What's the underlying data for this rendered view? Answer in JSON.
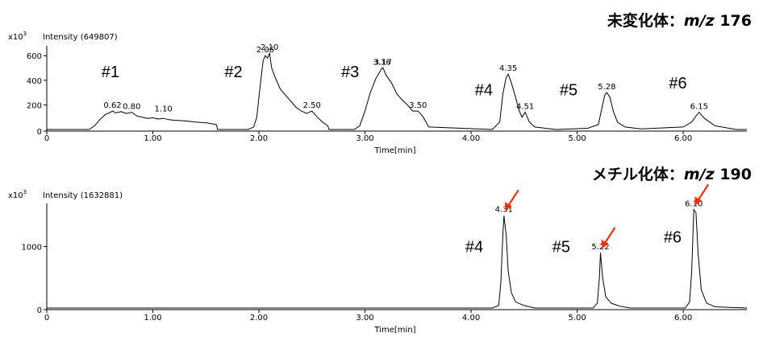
{
  "chart_data": [
    {
      "type": "line",
      "title": "未変化体：m/z 176",
      "title_parts": [
        "未変化体：",
        "m/z",
        " 176"
      ],
      "y_exponent_label": "x10",
      "y_exponent_power": "3",
      "intensity_label": "Intensity (649807)",
      "xlabel": "Time[min]",
      "xlim": [
        0,
        6.6
      ],
      "ylim": [
        0,
        680
      ],
      "x_ticks": [
        "0",
        "1.00",
        "2.00",
        "3.00",
        "4.00",
        "5.00",
        "6.00"
      ],
      "x_tick_values": [
        0,
        1,
        2,
        3,
        4,
        5,
        6
      ],
      "y_ticks": [
        "0",
        "200",
        "400",
        "600"
      ],
      "y_tick_values": [
        0,
        200,
        400,
        600
      ],
      "groups": [
        {
          "label": "#1",
          "x": 0.6,
          "y": 470
        },
        {
          "label": "#2",
          "x": 1.76,
          "y": 470
        },
        {
          "label": "#3",
          "x": 2.86,
          "y": 470
        },
        {
          "label": "#4",
          "x": 4.12,
          "y": 325
        },
        {
          "label": "#5",
          "x": 4.92,
          "y": 325
        },
        {
          "label": "#6",
          "x": 5.95,
          "y": 380
        }
      ],
      "peak_labels": [
        {
          "text": "0.62",
          "x": 0.62,
          "y": 150
        },
        {
          "text": "0.80",
          "x": 0.8,
          "y": 140
        },
        {
          "text": "1.10",
          "x": 1.1,
          "y": 120
        },
        {
          "text": "2.06",
          "x": 2.06,
          "y": 600
        },
        {
          "text": "2.10",
          "x": 2.1,
          "y": 620
        },
        {
          "text": "2.50",
          "x": 2.5,
          "y": 150
        },
        {
          "text": "3.16",
          "x": 3.16,
          "y": 500
        },
        {
          "text": "3.17",
          "x": 3.17,
          "y": 500
        },
        {
          "text": "3.50",
          "x": 3.5,
          "y": 150
        },
        {
          "text": "4.35",
          "x": 4.35,
          "y": 450
        },
        {
          "text": "4.51",
          "x": 4.51,
          "y": 140
        },
        {
          "text": "5.28",
          "x": 5.28,
          "y": 300
        },
        {
          "text": "6.15",
          "x": 6.15,
          "y": 140
        }
      ],
      "series": [
        {
          "x": [
            0,
            0.4,
            0.45,
            0.5,
            0.55,
            0.6,
            0.62,
            0.65,
            0.7,
            0.75,
            0.8,
            0.85,
            0.9,
            0.95,
            1.0,
            1.05,
            1.1,
            1.15,
            1.2,
            1.3,
            1.4,
            1.5,
            1.6,
            1.61,
            1.9,
            1.95,
            1.98,
            2.0,
            2.02,
            2.04,
            2.06,
            2.08,
            2.1,
            2.12,
            2.15,
            2.2,
            2.25,
            2.3,
            2.35,
            2.4,
            2.45,
            2.5,
            2.55,
            2.6,
            2.65,
            2.66,
            2.9,
            2.95,
            3.0,
            3.05,
            3.1,
            3.16,
            3.17,
            3.2,
            3.25,
            3.3,
            3.35,
            3.4,
            3.45,
            3.5,
            3.55,
            3.6,
            4.2,
            4.27,
            4.3,
            4.33,
            4.35,
            4.38,
            4.42,
            4.45,
            4.48,
            4.51,
            4.55,
            4.6,
            4.8,
            5.1,
            5.2,
            5.24,
            5.26,
            5.28,
            5.31,
            5.34,
            5.38,
            5.45,
            5.6,
            6.0,
            6.08,
            6.12,
            6.15,
            6.2,
            6.3,
            6.5,
            6.6
          ],
          "y": [
            0,
            0,
            30,
            80,
            120,
            140,
            150,
            135,
            145,
            130,
            140,
            110,
            100,
            90,
            95,
            85,
            90,
            80,
            75,
            70,
            60,
            55,
            40,
            0,
            0,
            20,
            100,
            260,
            420,
            560,
            600,
            580,
            620,
            500,
            430,
            330,
            280,
            230,
            180,
            150,
            130,
            150,
            100,
            60,
            30,
            0,
            0,
            30,
            150,
            300,
            410,
            500,
            500,
            440,
            380,
            290,
            240,
            200,
            150,
            150,
            100,
            20,
            0,
            60,
            290,
            420,
            450,
            380,
            260,
            160,
            100,
            140,
            60,
            20,
            0,
            10,
            40,
            200,
            280,
            300,
            260,
            150,
            60,
            20,
            5,
            20,
            60,
            110,
            140,
            90,
            30,
            0,
            0
          ]
        }
      ]
    },
    {
      "type": "line",
      "title": "メチル化体：m/z 190",
      "title_parts": [
        "メチル化体：",
        "m/z",
        " 190"
      ],
      "y_exponent_label": "x10",
      "y_exponent_power": "3",
      "intensity_label": "Intensity (1632881)",
      "xlabel": "Time[min]",
      "xlim": [
        0,
        6.6
      ],
      "ylim": [
        0,
        1700
      ],
      "x_ticks": [
        "0",
        "1.00",
        "2.00",
        "3.00",
        "4.00",
        "5.00",
        "6.00"
      ],
      "x_tick_values": [
        0,
        1,
        2,
        3,
        4,
        5,
        6
      ],
      "y_ticks": [
        "0",
        "1000"
      ],
      "y_tick_values": [
        0,
        1000
      ],
      "groups": [
        {
          "label": "#4",
          "x": 4.03,
          "y": 1000
        },
        {
          "label": "#5",
          "x": 4.85,
          "y": 1000
        },
        {
          "label": "#6",
          "x": 5.9,
          "y": 1160
        }
      ],
      "peak_labels": [
        {
          "text": "4.31",
          "x": 4.31,
          "y": 1510
        },
        {
          "text": "5.22",
          "x": 5.22,
          "y": 900
        },
        {
          "text": "6.10",
          "x": 6.1,
          "y": 1600
        }
      ],
      "arrows": [
        {
          "x": 4.31,
          "y": 1500
        },
        {
          "x": 5.22,
          "y": 890
        },
        {
          "x": 6.1,
          "y": 1590
        }
      ],
      "arrow_color": "#ff2a00",
      "series": [
        {
          "x": [
            0,
            4.2,
            4.26,
            4.28,
            4.3,
            4.31,
            4.33,
            4.35,
            4.38,
            4.42,
            4.5,
            4.6,
            5.15,
            5.19,
            5.21,
            5.22,
            5.24,
            5.27,
            5.32,
            5.4,
            5.5,
            6.02,
            6.06,
            6.08,
            6.1,
            6.12,
            6.14,
            6.17,
            6.22,
            6.3,
            6.6
          ],
          "y": [
            0,
            0,
            40,
            400,
            1200,
            1500,
            1200,
            600,
            250,
            100,
            40,
            0,
            0,
            80,
            500,
            900,
            500,
            180,
            80,
            30,
            0,
            0,
            100,
            600,
            1600,
            1550,
            900,
            300,
            80,
            20,
            0
          ]
        }
      ]
    }
  ]
}
